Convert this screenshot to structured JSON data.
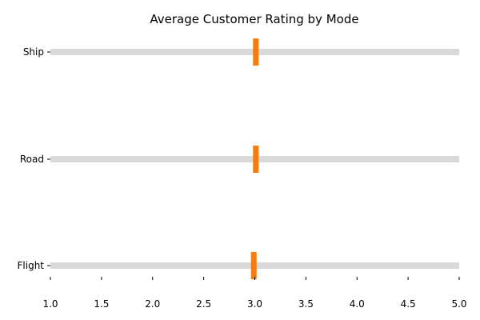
{
  "chart_data": {
    "type": "bar",
    "title": "Average Customer Rating by Mode",
    "xlabel": "",
    "ylabel": "",
    "categories": [
      "Ship",
      "Road",
      "Flight"
    ],
    "values": [
      3.01,
      3.01,
      2.99
    ],
    "xlim": [
      1.0,
      5.0
    ],
    "x_ticks": [
      "1.0",
      "1.5",
      "2.0",
      "2.5",
      "3.0",
      "3.5",
      "4.0",
      "4.5",
      "5.0"
    ],
    "grid": false,
    "legend": "none",
    "colors": {
      "track": "#d9d9d9",
      "marker": "#f57c12"
    }
  }
}
